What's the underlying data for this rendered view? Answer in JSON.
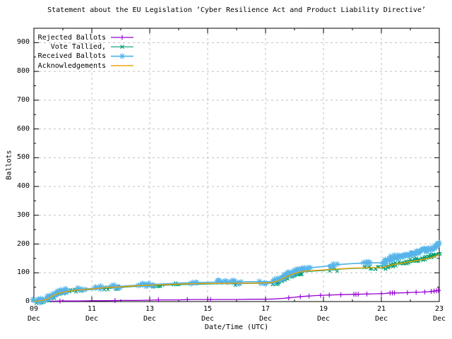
{
  "chart_data": {
    "type": "line",
    "title": "Statement about the EU Legislation ’Cyber Resilience Act and Product Liability Directive’",
    "xlabel": "Date/Time (UTC)",
    "ylabel": "Ballots",
    "xlim": [
      0,
      14
    ],
    "ylim": [
      0,
      950
    ],
    "x_unit_note": "days since 09 Dec 00:00 UTC",
    "grid": true,
    "legend_position": "top-left",
    "y_ticks": [
      0,
      100,
      200,
      300,
      400,
      500,
      600,
      700,
      800,
      900
    ],
    "x_ticks": [
      {
        "pos": 0,
        "day": "09",
        "month": "Dec"
      },
      {
        "pos": 2,
        "day": "11",
        "month": "Dec"
      },
      {
        "pos": 4,
        "day": "13",
        "month": "Dec"
      },
      {
        "pos": 6,
        "day": "15",
        "month": "Dec"
      },
      {
        "pos": 8,
        "day": "17",
        "month": "Dec"
      },
      {
        "pos": 10,
        "day": "19",
        "month": "Dec"
      },
      {
        "pos": 12,
        "day": "21",
        "month": "Dec"
      },
      {
        "pos": 14,
        "day": "23",
        "month": "Dec"
      }
    ],
    "colors": {
      "grid": "#bfbfbf",
      "axis": "#000000",
      "background": "#ffffff"
    },
    "series": [
      {
        "name": "Rejected Ballots",
        "color": "#9400d3",
        "marker": "plus",
        "line_width": 1.3,
        "marker_days": [
          0.2,
          0.9,
          2.8,
          4.3,
          5.3,
          6.1,
          8.8,
          9.2,
          9.5,
          9.9,
          10.2,
          10.6,
          11.05,
          11.12,
          11.2,
          11.5,
          12.0,
          12.3,
          12.38,
          12.45,
          12.9,
          13.2,
          13.5,
          13.72,
          13.82,
          13.9,
          13.97
        ],
        "points": [
          [
            0,
            0
          ],
          [
            0.5,
            1
          ],
          [
            1.0,
            2
          ],
          [
            1.5,
            2
          ],
          [
            2.0,
            3
          ],
          [
            2.5,
            3
          ],
          [
            3.0,
            4
          ],
          [
            3.5,
            4
          ],
          [
            4.0,
            5
          ],
          [
            4.3,
            6
          ],
          [
            5.0,
            6
          ],
          [
            5.5,
            7
          ],
          [
            6.0,
            7
          ],
          [
            6.5,
            7
          ],
          [
            7.0,
            7
          ],
          [
            7.5,
            8
          ],
          [
            8.0,
            8
          ],
          [
            8.3,
            9
          ],
          [
            8.6,
            11
          ],
          [
            8.8,
            13
          ],
          [
            9.0,
            15
          ],
          [
            9.3,
            18
          ],
          [
            9.6,
            20
          ],
          [
            10.0,
            22
          ],
          [
            10.3,
            23
          ],
          [
            10.6,
            24
          ],
          [
            11.0,
            25
          ],
          [
            11.4,
            26
          ],
          [
            11.8,
            27
          ],
          [
            12.1,
            28
          ],
          [
            12.3,
            30
          ],
          [
            12.6,
            30
          ],
          [
            12.9,
            31
          ],
          [
            13.1,
            32
          ],
          [
            13.4,
            33
          ],
          [
            13.6,
            34
          ],
          [
            13.8,
            36
          ],
          [
            14.0,
            39
          ]
        ]
      },
      {
        "name": "Vote Tallied,",
        "color": "#009e73",
        "marker": "cross",
        "line_width": 1.2,
        "points": [
          [
            0,
            0
          ],
          [
            0.15,
            1
          ],
          [
            0.3,
            3
          ],
          [
            0.45,
            7
          ],
          [
            0.55,
            12
          ],
          [
            0.65,
            18
          ],
          [
            0.78,
            24
          ],
          [
            0.9,
            28
          ],
          [
            1.05,
            31
          ],
          [
            1.25,
            35
          ],
          [
            1.5,
            38
          ],
          [
            1.75,
            40
          ],
          [
            2.0,
            42
          ],
          [
            2.3,
            45
          ],
          [
            2.6,
            47
          ],
          [
            3.0,
            49
          ],
          [
            3.4,
            52
          ],
          [
            3.8,
            54
          ],
          [
            4.2,
            56
          ],
          [
            4.6,
            57
          ],
          [
            5.0,
            59
          ],
          [
            5.5,
            60
          ],
          [
            6.0,
            61
          ],
          [
            6.5,
            62
          ],
          [
            7.0,
            62
          ],
          [
            7.5,
            63
          ],
          [
            8.0,
            63
          ],
          [
            8.2,
            64
          ],
          [
            8.4,
            69
          ],
          [
            8.6,
            78
          ],
          [
            8.8,
            88
          ],
          [
            9.0,
            96
          ],
          [
            9.2,
            101
          ],
          [
            9.4,
            104
          ],
          [
            9.7,
            106
          ],
          [
            10.0,
            108
          ],
          [
            10.3,
            111
          ],
          [
            10.6,
            113
          ],
          [
            11.0,
            115
          ],
          [
            11.4,
            116
          ],
          [
            12.0,
            118
          ],
          [
            12.15,
            122
          ],
          [
            12.3,
            128
          ],
          [
            12.5,
            132
          ],
          [
            12.75,
            136
          ],
          [
            13.0,
            141
          ],
          [
            13.3,
            147
          ],
          [
            13.6,
            153
          ],
          [
            13.8,
            159
          ],
          [
            14.0,
            168
          ]
        ]
      },
      {
        "name": "Received Ballots",
        "color": "#56b4e9",
        "marker": "asterisk",
        "line_width": 1.7,
        "points": [
          [
            0,
            1
          ],
          [
            0.15,
            3
          ],
          [
            0.3,
            5
          ],
          [
            0.45,
            10
          ],
          [
            0.55,
            16
          ],
          [
            0.65,
            22
          ],
          [
            0.78,
            28
          ],
          [
            0.9,
            32
          ],
          [
            1.05,
            35
          ],
          [
            1.25,
            39
          ],
          [
            1.5,
            42
          ],
          [
            1.75,
            44
          ],
          [
            2.0,
            46
          ],
          [
            2.3,
            49
          ],
          [
            2.6,
            51
          ],
          [
            3.0,
            53
          ],
          [
            3.4,
            56
          ],
          [
            3.8,
            58
          ],
          [
            4.2,
            60
          ],
          [
            4.6,
            62
          ],
          [
            5.0,
            64
          ],
          [
            5.5,
            66
          ],
          [
            6.0,
            67
          ],
          [
            6.5,
            68
          ],
          [
            7.0,
            68
          ],
          [
            7.5,
            69
          ],
          [
            8.0,
            69
          ],
          [
            8.2,
            70
          ],
          [
            8.4,
            75
          ],
          [
            8.6,
            85
          ],
          [
            8.8,
            96
          ],
          [
            9.0,
            105
          ],
          [
            9.2,
            111
          ],
          [
            9.4,
            115
          ],
          [
            9.7,
            119
          ],
          [
            10.0,
            122
          ],
          [
            10.3,
            126
          ],
          [
            10.6,
            129
          ],
          [
            11.0,
            132
          ],
          [
            11.4,
            134
          ],
          [
            12.0,
            135
          ],
          [
            12.15,
            140
          ],
          [
            12.3,
            148
          ],
          [
            12.5,
            154
          ],
          [
            12.75,
            159
          ],
          [
            13.0,
            166
          ],
          [
            13.3,
            173
          ],
          [
            13.6,
            181
          ],
          [
            13.8,
            189
          ],
          [
            14.0,
            201
          ]
        ]
      },
      {
        "name": "Acknowledgements",
        "color": "#e69f00",
        "marker": "none",
        "line_width": 1.4,
        "points": [
          [
            0,
            0
          ],
          [
            0.15,
            2
          ],
          [
            0.3,
            4
          ],
          [
            0.45,
            8
          ],
          [
            0.55,
            14
          ],
          [
            0.65,
            20
          ],
          [
            0.78,
            26
          ],
          [
            0.9,
            30
          ],
          [
            1.05,
            33
          ],
          [
            1.25,
            37
          ],
          [
            1.5,
            40
          ],
          [
            1.75,
            42
          ],
          [
            2.0,
            44
          ],
          [
            2.3,
            47
          ],
          [
            2.6,
            49
          ],
          [
            3.0,
            51
          ],
          [
            3.4,
            54
          ],
          [
            3.8,
            56
          ],
          [
            4.2,
            58
          ],
          [
            4.6,
            59
          ],
          [
            5.0,
            61
          ],
          [
            5.5,
            62
          ],
          [
            6.0,
            63
          ],
          [
            6.5,
            63
          ],
          [
            7.0,
            64
          ],
          [
            7.5,
            64
          ],
          [
            8.0,
            65
          ],
          [
            8.2,
            66
          ],
          [
            8.4,
            71
          ],
          [
            8.6,
            80
          ],
          [
            8.8,
            90
          ],
          [
            9.0,
            98
          ],
          [
            9.2,
            103
          ],
          [
            9.4,
            106
          ],
          [
            9.7,
            108
          ],
          [
            10.0,
            110
          ],
          [
            10.3,
            112
          ],
          [
            10.6,
            114
          ],
          [
            11.0,
            116
          ],
          [
            11.4,
            117
          ],
          [
            12.0,
            118
          ],
          [
            12.15,
            121
          ],
          [
            12.3,
            126
          ],
          [
            12.5,
            130
          ],
          [
            12.75,
            134
          ],
          [
            13.0,
            139
          ],
          [
            13.3,
            144
          ],
          [
            13.6,
            150
          ],
          [
            13.8,
            155
          ],
          [
            14.0,
            164
          ]
        ]
      }
    ]
  }
}
